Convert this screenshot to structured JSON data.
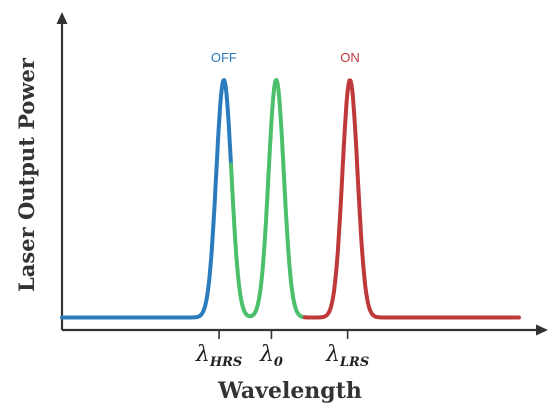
{
  "chart_data": {
    "type": "line",
    "title": "",
    "xlabel": "Wavelength",
    "ylabel": "Laser Output Power",
    "xlim": [
      0,
      10
    ],
    "ylim": [
      0,
      1.1
    ],
    "grid": false,
    "legend": "none",
    "x_ticks": [
      {
        "x": 3.3,
        "symbol": "λ",
        "sub": "HRS"
      },
      {
        "x": 4.4,
        "symbol": "λ",
        "sub": "0"
      },
      {
        "x": 6.0,
        "symbol": "λ",
        "sub": "LRS"
      }
    ],
    "baseline": 0.05,
    "series": [
      {
        "label": "OFF",
        "color": "#2b7bbd",
        "center": 3.4,
        "peak": 1.0,
        "x_range": [
          0.0,
          3.55
        ]
      },
      {
        "label": "",
        "color": "#4cbf6a",
        "center": 4.5,
        "peak": 1.0,
        "x_range": [
          3.55,
          5.1
        ]
      },
      {
        "label": "ON",
        "color": "#c0393a",
        "center": 6.05,
        "peak": 1.0,
        "x_range": [
          5.1,
          9.6
        ]
      }
    ],
    "annotations": [
      {
        "text": "OFF",
        "series": 0,
        "color": "#2b7bbd"
      },
      {
        "text": "ON",
        "series": 2,
        "color": "#c0393a"
      }
    ]
  }
}
